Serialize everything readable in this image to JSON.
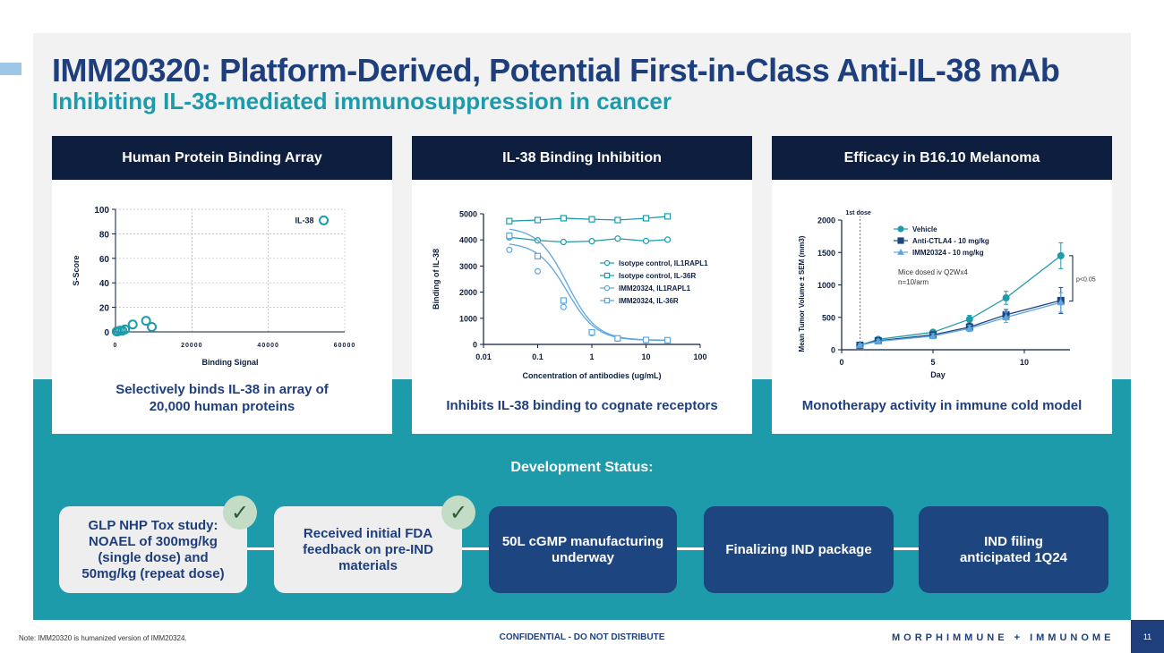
{
  "header": {
    "title": "IMM20320: Platform-Derived, Potential First-in-Class Anti-IL-38 mAb",
    "subtitle": "Inhibiting IL-38-mediated immunosuppression in cancer"
  },
  "panels": [
    {
      "title": "Human Protein Binding Array",
      "caption_line1": "Selectively binds IL-38 in array of",
      "caption_line2": "20,000 human proteins"
    },
    {
      "title": "IL-38 Binding Inhibition",
      "caption_line1": "Inhibits IL-38 binding to cognate receptors"
    },
    {
      "title": "Efficacy in B16.10 Melanoma",
      "caption_line1": "Monotherapy activity in immune cold model"
    }
  ],
  "chart_data": [
    {
      "type": "scatter",
      "xlabel": "Binding Signal",
      "ylabel": "S-Score",
      "xlim": [
        0,
        60000
      ],
      "ylim": [
        0,
        100
      ],
      "xticks": [
        "0",
        "20000",
        "40000",
        "60000"
      ],
      "yticks": [
        "0",
        "20",
        "40",
        "60",
        "80",
        "100"
      ],
      "grid": true,
      "annotation": "IL-38",
      "points": [
        {
          "x": 54500,
          "y": 91
        },
        {
          "x": 8000,
          "y": 9
        },
        {
          "x": 9500,
          "y": 4
        },
        {
          "x": 4500,
          "y": 6
        },
        {
          "x": 2500,
          "y": 2
        },
        {
          "x": 1800,
          "y": 1
        },
        {
          "x": 1200,
          "y": 1
        },
        {
          "x": 600,
          "y": 0.5
        },
        {
          "x": 300,
          "y": 0.3
        }
      ]
    },
    {
      "type": "line",
      "xlabel": "Concentration of antibodies (ug/mL)",
      "ylabel": "Binding of IL-38",
      "xscale": "log",
      "xlim": [
        0.01,
        100
      ],
      "ylim": [
        0,
        5000
      ],
      "xticks": [
        "0.01",
        "0.1",
        "1",
        "10",
        "100"
      ],
      "yticks": [
        "0",
        "1000",
        "2000",
        "3000",
        "4000",
        "5000"
      ],
      "legend": "right",
      "x": [
        0.03,
        0.1,
        0.3,
        1,
        3,
        10,
        25
      ],
      "series": [
        {
          "name": "Isotype control, IL1RAPL1",
          "marker": "circle",
          "values": [
            4100,
            3980,
            3920,
            3950,
            4050,
            3960,
            4010
          ]
        },
        {
          "name": "Isotype control, IL-36R",
          "marker": "square",
          "values": [
            4720,
            4760,
            4830,
            4790,
            4760,
            4830,
            4900
          ]
        },
        {
          "name": "IMM20324, IL1RAPL1",
          "marker": "circle",
          "values": [
            3620,
            2800,
            1430,
            430,
            220,
            160,
            150
          ]
        },
        {
          "name": "IMM20324, IL-36R",
          "marker": "square",
          "values": [
            4160,
            3380,
            1680,
            460,
            230,
            170,
            160
          ]
        }
      ]
    },
    {
      "type": "line",
      "xlabel": "Day",
      "ylabel": "Mean Tumor Volume ± SEM (mm3)",
      "xlim": [
        0,
        12.5
      ],
      "ylim": [
        0,
        2000
      ],
      "xticks": [
        "0",
        "5",
        "10"
      ],
      "yticks": [
        "0",
        "500",
        "1000",
        "1500",
        "2000"
      ],
      "legend": "top-left",
      "dose_label": "1st dose",
      "dose_day": 1,
      "note_line1": "Mice dosed iv Q2Wx4",
      "note_line2": "n=10/arm",
      "significance": "p<0.05",
      "x": [
        1,
        2,
        5,
        7,
        9,
        12
      ],
      "series": [
        {
          "name": "Vehicle",
          "color": "#1e9bab",
          "marker": "circle",
          "values": [
            70,
            160,
            270,
            470,
            800,
            1450
          ],
          "err": [
            20,
            30,
            40,
            60,
            100,
            200
          ]
        },
        {
          "name": "Anti-CTLA4 - 10 mg/kg",
          "color": "#1d4580",
          "marker": "square",
          "values": [
            70,
            140,
            230,
            350,
            540,
            760
          ],
          "err": [
            20,
            30,
            40,
            60,
            80,
            200
          ]
        },
        {
          "name": "IMM20324 - 10 mg/kg",
          "color": "#5fa6de",
          "marker": "triangle",
          "values": [
            70,
            130,
            210,
            330,
            500,
            730
          ],
          "err": [
            20,
            30,
            40,
            50,
            80,
            150
          ]
        }
      ]
    }
  ],
  "dev": {
    "heading": "Development Status:",
    "stages": [
      {
        "line1": "GLP NHP Tox study:",
        "line2": "NOAEL of 300mg/kg",
        "line3": "(single dose) and",
        "line4": "50mg/kg (repeat dose)"
      },
      {
        "line1": "Received initial FDA",
        "line2": "feedback on pre-IND",
        "line3": "materials"
      },
      {
        "line1": "50L cGMP manufacturing",
        "line2": "underway"
      },
      {
        "line1": "Finalizing IND package"
      },
      {
        "line1": "IND filing",
        "line2": "anticipated 1Q24"
      }
    ],
    "check_glyph": "✓"
  },
  "footer": {
    "note": "Note: IMM20320 is humanized version of IMM20324.",
    "confidential": "CONFIDENTIAL - DO NOT DISTRIBUTE",
    "brand": "MORPHIMMUNE + IMMUNOME",
    "page": "11"
  },
  "colors": {
    "navy": "#1f3f7c",
    "teal": "#1e9bab",
    "panel_head": "#0e1e3e",
    "stage_dark": "#1d4580",
    "light_blue": "#5fa6de",
    "check_bg": "#c3dcc5"
  }
}
